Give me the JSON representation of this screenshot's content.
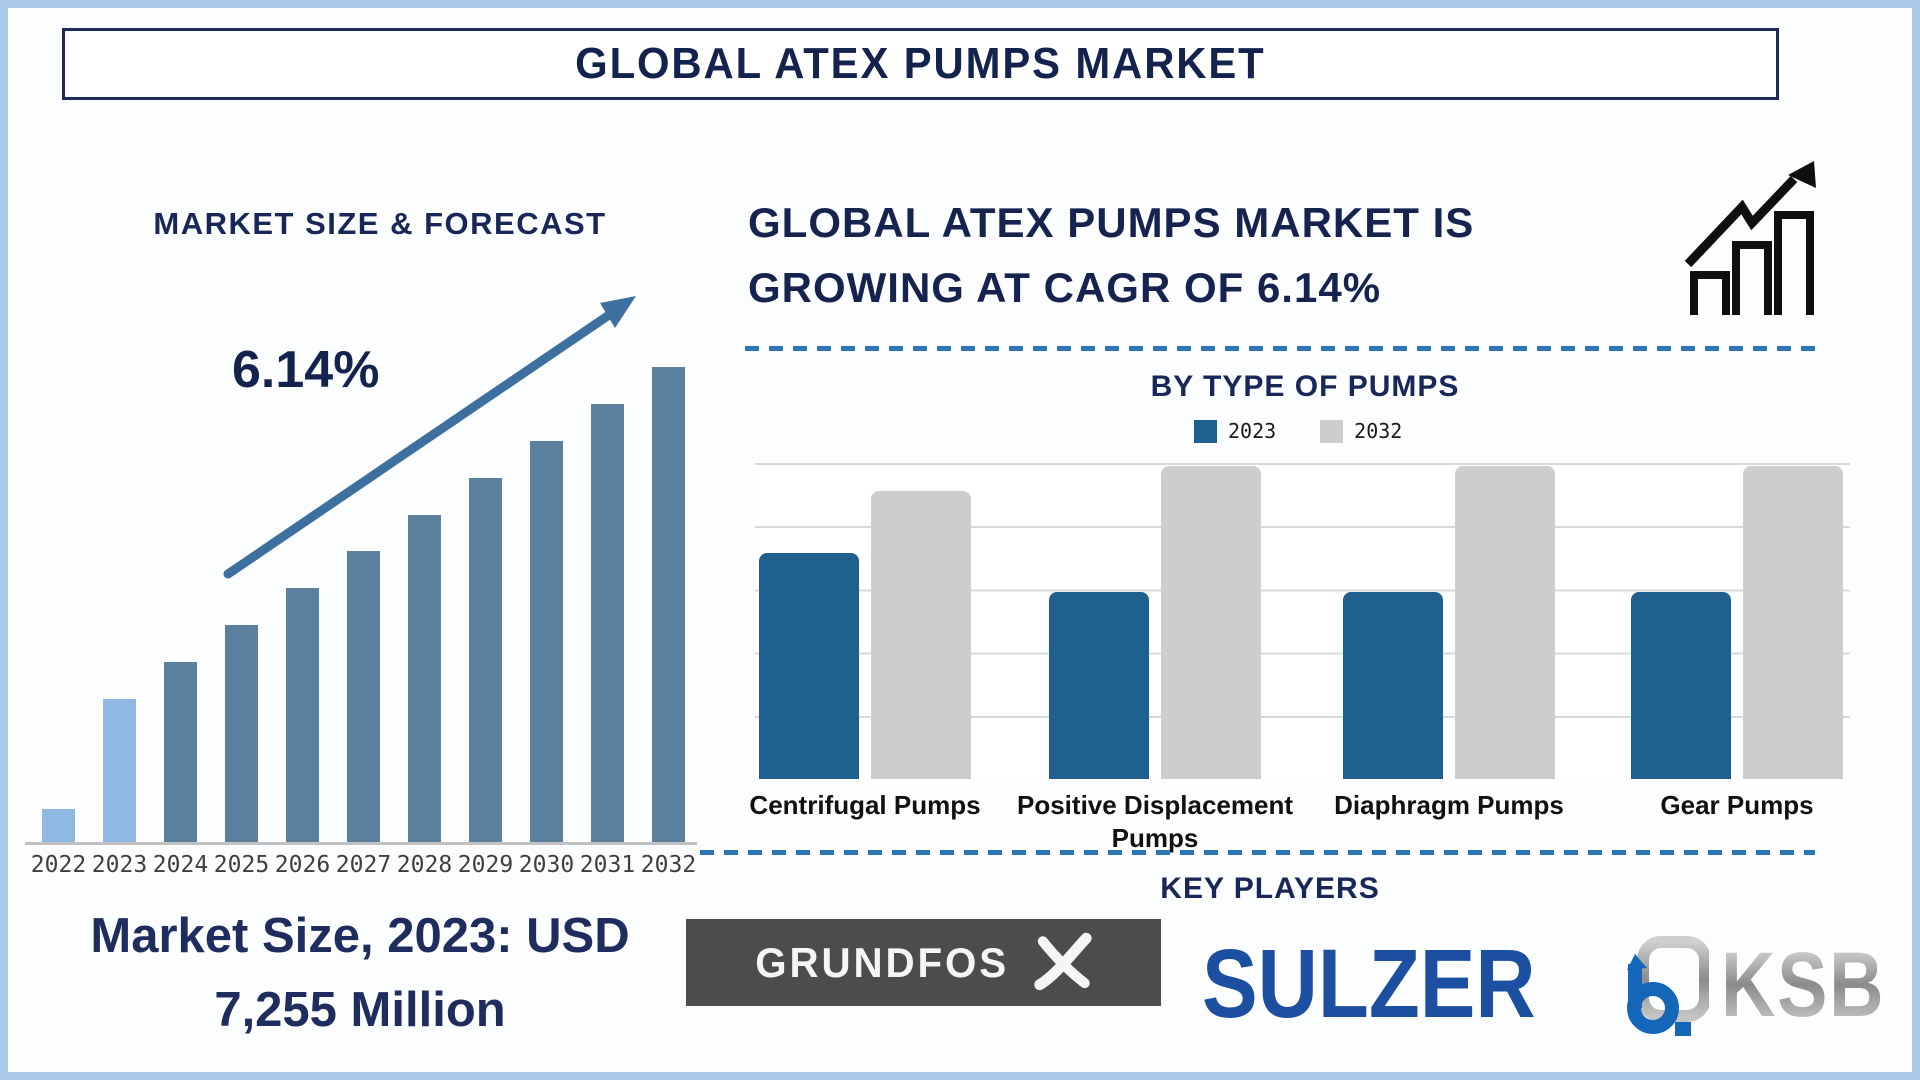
{
  "header": {
    "title": "GLOBAL ATEX PUMPS MARKET"
  },
  "left_panel": {
    "chart_title": "MARKET SIZE & FORECAST",
    "cagr": "6.14%",
    "market_size_line1": "Market Size, 2023: USD",
    "market_size_line2": "7,255 Million"
  },
  "right_panel": {
    "headline_line1": "GLOBAL ATEX PUMPS MARKET IS",
    "headline_line2": "GROWING AT CAGR OF 6.14%"
  },
  "key_players": {
    "title": "KEY PLAYERS",
    "players": [
      {
        "name": "GRUNDFOS"
      },
      {
        "name": "SULZER"
      },
      {
        "name": "KSB"
      }
    ]
  },
  "colors": {
    "navy_text": "#182758",
    "dashed_divider": "#2e75b6",
    "trend_arrow": "#3e709f",
    "page_frame": "#a9c7e8",
    "grundfos_box": "#4c4c4c",
    "sulzer_blue": "#1d4fa1",
    "ksb_blue": "#1467b8"
  },
  "chart_data": [
    {
      "id": "market-size-forecast",
      "type": "bar",
      "title": "MARKET SIZE & FORECAST",
      "categories": [
        "2022",
        "2023",
        "2024",
        "2025",
        "2026",
        "2027",
        "2028",
        "2029",
        "2030",
        "2031",
        "2032"
      ],
      "values_relative_pct": [
        7.3,
        30.4,
        38.2,
        45.9,
        53.7,
        61.4,
        69.0,
        76.7,
        84.5,
        92.2,
        100
      ],
      "highlighted_categories": [
        "2022",
        "2023"
      ],
      "bar_color": "#5a7f9f",
      "highlight_color": "#8fb9e2",
      "annotation": "6.14%",
      "xlabel": "",
      "ylabel": "",
      "grid": false,
      "note": "bars carry no printed values; heights are relative estimates (% of tallest 2032 bar)"
    },
    {
      "id": "by-type-of-pumps",
      "type": "bar",
      "title": "BY TYPE OF PUMPS",
      "categories": [
        "Centrifugal Pumps",
        "Positive Displacement Pumps",
        "Diaphragm Pumps",
        "Gear Pumps"
      ],
      "series": [
        {
          "name": "2023",
          "color": "#20608f",
          "values_relative": [
            3.57,
            2.96,
            2.96,
            2.96
          ]
        },
        {
          "name": "2032",
          "color": "#cdcdcd",
          "values_relative": [
            4.56,
            4.95,
            4.95,
            4.95
          ]
        }
      ],
      "ylim": [
        0,
        5
      ],
      "grid": true,
      "legend_position": "top",
      "note": "bars carry no printed values; values estimated against 0-5 gridline scale"
    }
  ]
}
